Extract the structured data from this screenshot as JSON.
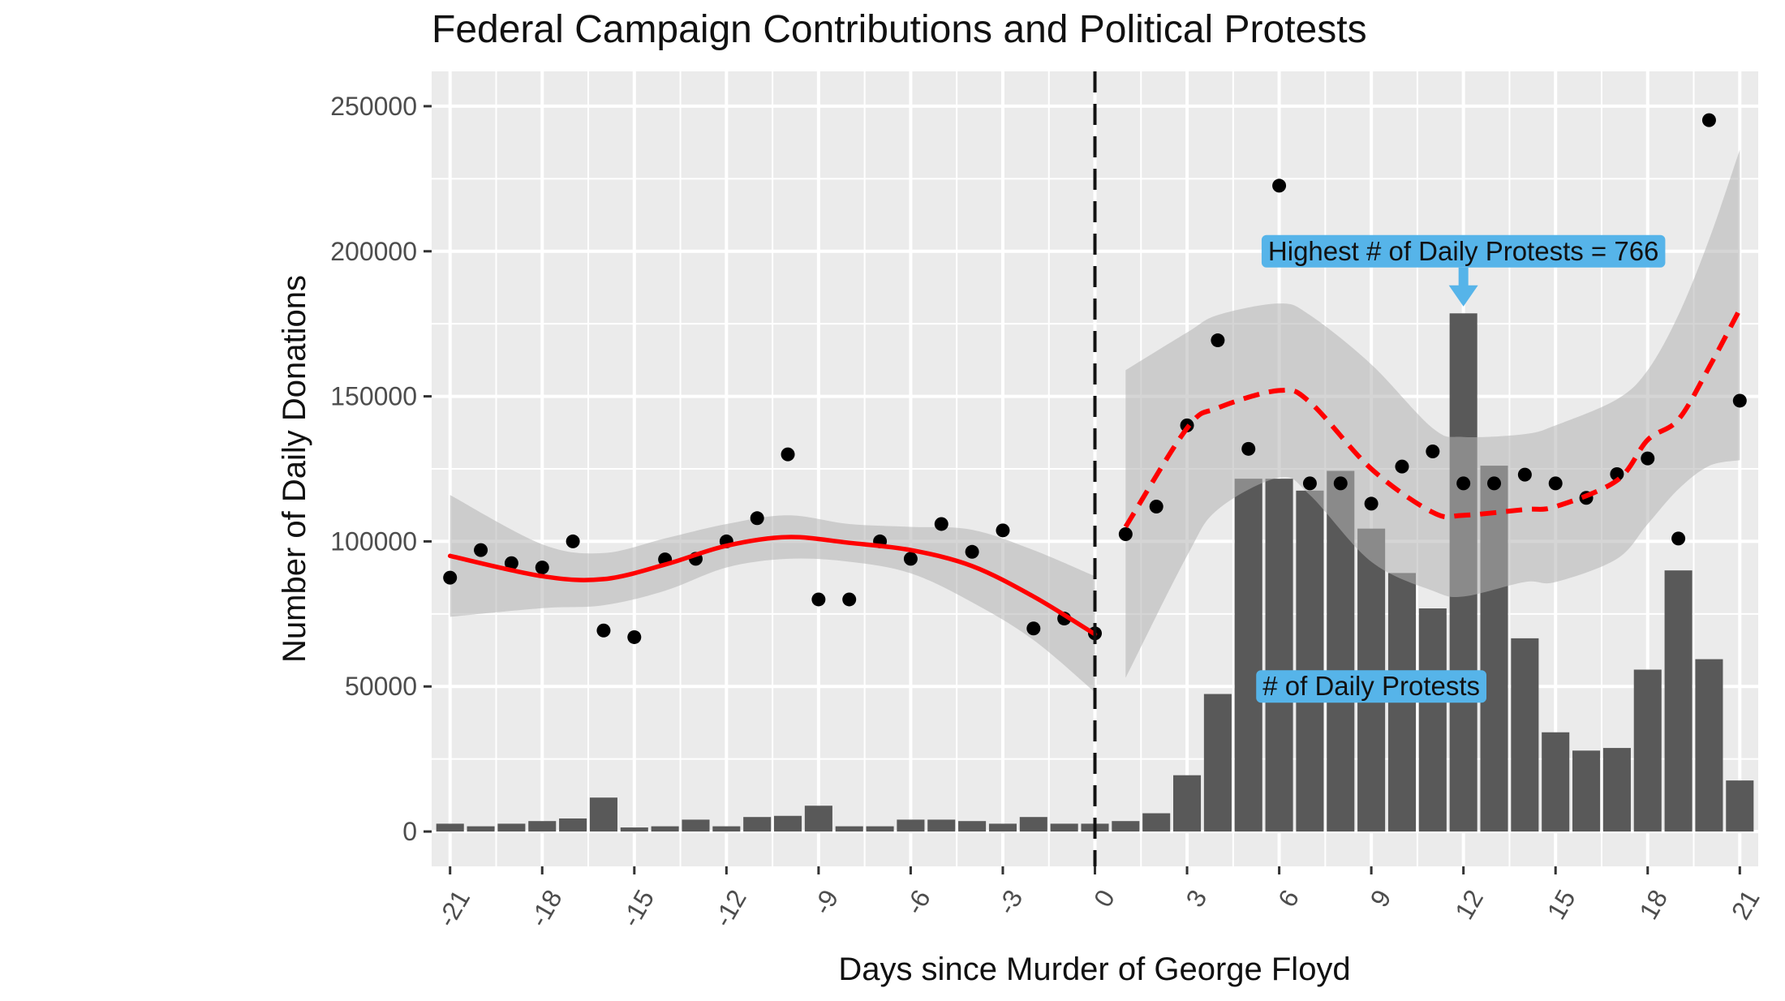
{
  "chart_data": {
    "type": "bar",
    "title": "Federal Campaign Contributions and Political Protests",
    "xlabel": "Days since Murder of George Floyd",
    "ylabel": "Number of Daily Donations",
    "xlim": [
      -21.6,
      21.6
    ],
    "ylim": [
      -12000,
      262000
    ],
    "x_ticks": [
      -21,
      -18,
      -15,
      -12,
      -9,
      -6,
      -3,
      0,
      3,
      6,
      9,
      12,
      15,
      18,
      21
    ],
    "x_tick_labels": [
      "-21",
      "-18",
      "-15",
      "-12",
      "-9",
      "-6",
      "-3",
      "0",
      "3",
      "6",
      "9",
      "12",
      "15",
      "18",
      "21"
    ],
    "y_ticks": [
      0,
      50000,
      100000,
      150000,
      200000,
      250000
    ],
    "y_tick_labels": [
      "0",
      "50000",
      "100000",
      "150000",
      "200000",
      "250000"
    ],
    "grid": true,
    "vline_x": 0,
    "colors": {
      "panel": "#ebebeb",
      "grid": "#ffffff",
      "bars": "#595959",
      "points": "#000000",
      "smooth": "#ff0000",
      "ribbon": "#b3b3b3",
      "annotation": "#56b4e9"
    },
    "bars": {
      "name": "# of Daily Protests",
      "x": [
        -21,
        -20,
        -19,
        -18,
        -17,
        -16,
        -15,
        -14,
        -13,
        -12,
        -11,
        -10,
        -9,
        -8,
        -7,
        -6,
        -5,
        -4,
        -3,
        -2,
        -1,
        0,
        1,
        2,
        3,
        4,
        5,
        6,
        7,
        8,
        9,
        10,
        11,
        12,
        13,
        14,
        15,
        16,
        17,
        18,
        19,
        20,
        21
      ],
      "values": [
        2700,
        1800,
        2700,
        3600,
        4500,
        11700,
        1400,
        1800,
        4100,
        1800,
        5000,
        5400,
        8900,
        1800,
        1800,
        4100,
        4100,
        3600,
        2700,
        5000,
        2700,
        2700,
        3600,
        6300,
        19400,
        47400,
        121600,
        121600,
        117500,
        124300,
        104400,
        89100,
        76900,
        178600,
        126100,
        66600,
        34200,
        27900,
        28800,
        55800,
        90000,
        59400,
        17600
      ]
    },
    "points": {
      "x": [
        -21,
        -20,
        -19,
        -18,
        -17,
        -16,
        -15,
        -14,
        -13,
        -12,
        -11,
        -10,
        -9,
        -8,
        -7,
        -6,
        -5,
        -4,
        -3,
        -2,
        -1,
        0,
        1,
        2,
        3,
        4,
        5,
        6,
        7,
        8,
        9,
        10,
        11,
        12,
        13,
        14,
        15,
        16,
        17,
        18,
        19,
        20,
        21
      ],
      "y": [
        87500,
        97000,
        92500,
        91000,
        100000,
        69300,
        67000,
        93800,
        94000,
        100000,
        108000,
        130000,
        80000,
        80000,
        100000,
        94000,
        106000,
        96400,
        103800,
        70000,
        73400,
        68300,
        102500,
        112000,
        140000,
        169300,
        131900,
        222600,
        120000,
        120000,
        113000,
        125800,
        131000,
        120000,
        120000,
        123000,
        120000,
        115000,
        123200,
        128600,
        101000,
        245200,
        148500
      ]
    },
    "smooth_pre": {
      "x": [
        -21,
        -18,
        -16,
        -14,
        -12,
        -10,
        -8,
        -6,
        -4,
        -2,
        0
      ],
      "y": [
        95000,
        88000,
        87000,
        92000,
        98500,
        101500,
        99500,
        97000,
        91500,
        81000,
        68000
      ],
      "lower": [
        74000,
        77000,
        78000,
        83000,
        91000,
        94000,
        93000,
        89000,
        79000,
        66000,
        48000
      ],
      "upper": [
        116000,
        99000,
        96000,
        101000,
        106000,
        109000,
        106000,
        105000,
        104000,
        97000,
        88000
      ]
    },
    "smooth_post": {
      "x": [
        1,
        3,
        4,
        6,
        7,
        9,
        11,
        12,
        14,
        15,
        17,
        18,
        19,
        20,
        21
      ],
      "y": [
        105000,
        139000,
        146000,
        152000,
        148000,
        125000,
        110000,
        109000,
        111000,
        112000,
        121000,
        135000,
        142000,
        160000,
        180000
      ],
      "lower": [
        53000,
        95000,
        111000,
        122000,
        116000,
        93000,
        83000,
        81000,
        86000,
        86000,
        94000,
        106000,
        118000,
        126000,
        128000
      ],
      "upper": [
        159000,
        172000,
        178000,
        182000,
        178000,
        161000,
        139000,
        136000,
        137000,
        140000,
        149000,
        159000,
        178000,
        204000,
        235000
      ]
    },
    "annotations": [
      {
        "label": "Highest # of Daily Protests = 766",
        "x": 12,
        "y": 200000,
        "arrow_to_y": 181000
      },
      {
        "label": "# of Daily Protests",
        "x": 9,
        "y": 50000
      }
    ]
  }
}
